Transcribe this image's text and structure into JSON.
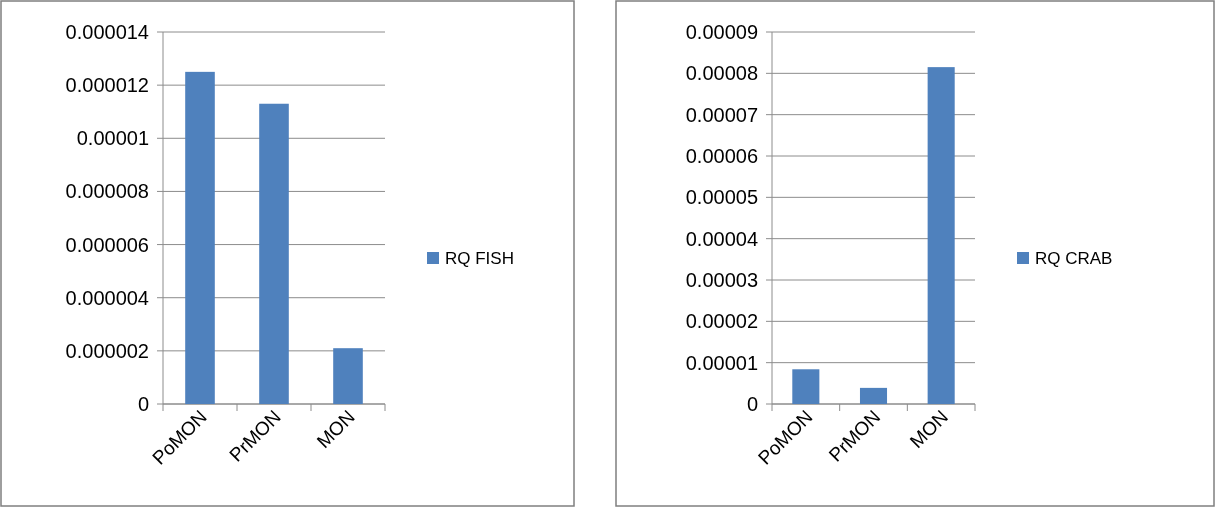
{
  "chart_data": [
    {
      "type": "bar",
      "categories": [
        "PoMON",
        "PrMON",
        "MON"
      ],
      "series": [
        {
          "name": "RQ FISH",
          "color": "#4f81bd",
          "values": [
            1.25e-05,
            1.13e-05,
            2.1e-06
          ]
        }
      ],
      "ylim": [
        0,
        1.4e-05
      ],
      "yticks": [
        0,
        {
          "value": 2e-06,
          "label": "0.000002"
        },
        {
          "value": 4e-06,
          "label": "0.000004"
        },
        {
          "value": 6e-06,
          "label": "0.000006"
        },
        {
          "value": 8e-06,
          "label": "0.000008"
        },
        {
          "value": 1e-05,
          "label": "0.00001"
        },
        {
          "value": 1.2e-05,
          "label": "0.000012"
        },
        {
          "value": 1.4e-05,
          "label": "0.000014"
        }
      ],
      "grid": "y",
      "legend": "right"
    },
    {
      "type": "bar",
      "categories": [
        "PoMON",
        "PrMON",
        "MON"
      ],
      "series": [
        {
          "name": "RQ CRAB",
          "color": "#4f81bd",
          "values": [
            8.4e-06,
            3.9e-06,
            8.15e-05
          ]
        }
      ],
      "ylim": [
        0,
        9e-05
      ],
      "yticks": [
        0,
        {
          "value": 1e-05,
          "label": "0.00001"
        },
        {
          "value": 2e-05,
          "label": "0.00002"
        },
        {
          "value": 3e-05,
          "label": "0.00003"
        },
        {
          "value": 4e-05,
          "label": "0.00004"
        },
        {
          "value": 5e-05,
          "label": "0.00005"
        },
        {
          "value": 6e-05,
          "label": "0.00006"
        },
        {
          "value": 7e-05,
          "label": "0.00007"
        },
        {
          "value": 8e-05,
          "label": "0.00008"
        },
        {
          "value": 9e-05,
          "label": "0.00009"
        }
      ],
      "grid": "y",
      "legend": "right"
    }
  ]
}
